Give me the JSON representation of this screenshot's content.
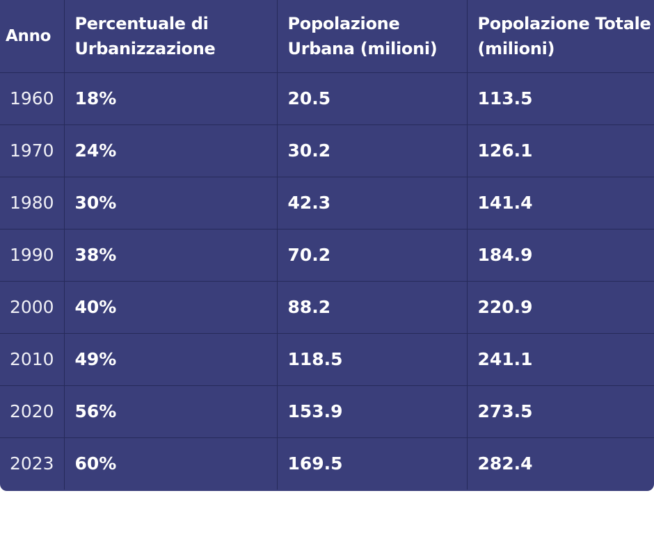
{
  "table": {
    "headers": [
      "Anno",
      "Percentuale di Urbanizzazione",
      "Popolazione Urbana (milioni)",
      "Popolazione Totale (milioni)"
    ],
    "rows": [
      [
        "1960",
        "18%",
        "20.5",
        "113.5"
      ],
      [
        "1970",
        "24%",
        "30.2",
        "126.1"
      ],
      [
        "1980",
        "30%",
        "42.3",
        "141.4"
      ],
      [
        "1990",
        "38%",
        "70.2",
        "184.9"
      ],
      [
        "2000",
        "40%",
        "88.2",
        "220.9"
      ],
      [
        "2010",
        "49%",
        "118.5",
        "241.1"
      ],
      [
        "2020",
        "56%",
        "153.9",
        "273.5"
      ],
      [
        "2023",
        "60%",
        "169.5",
        "282.4"
      ]
    ]
  },
  "colors": {
    "background": "#3a3e7a",
    "grid": "#262a5a",
    "text": "#ffffff"
  }
}
